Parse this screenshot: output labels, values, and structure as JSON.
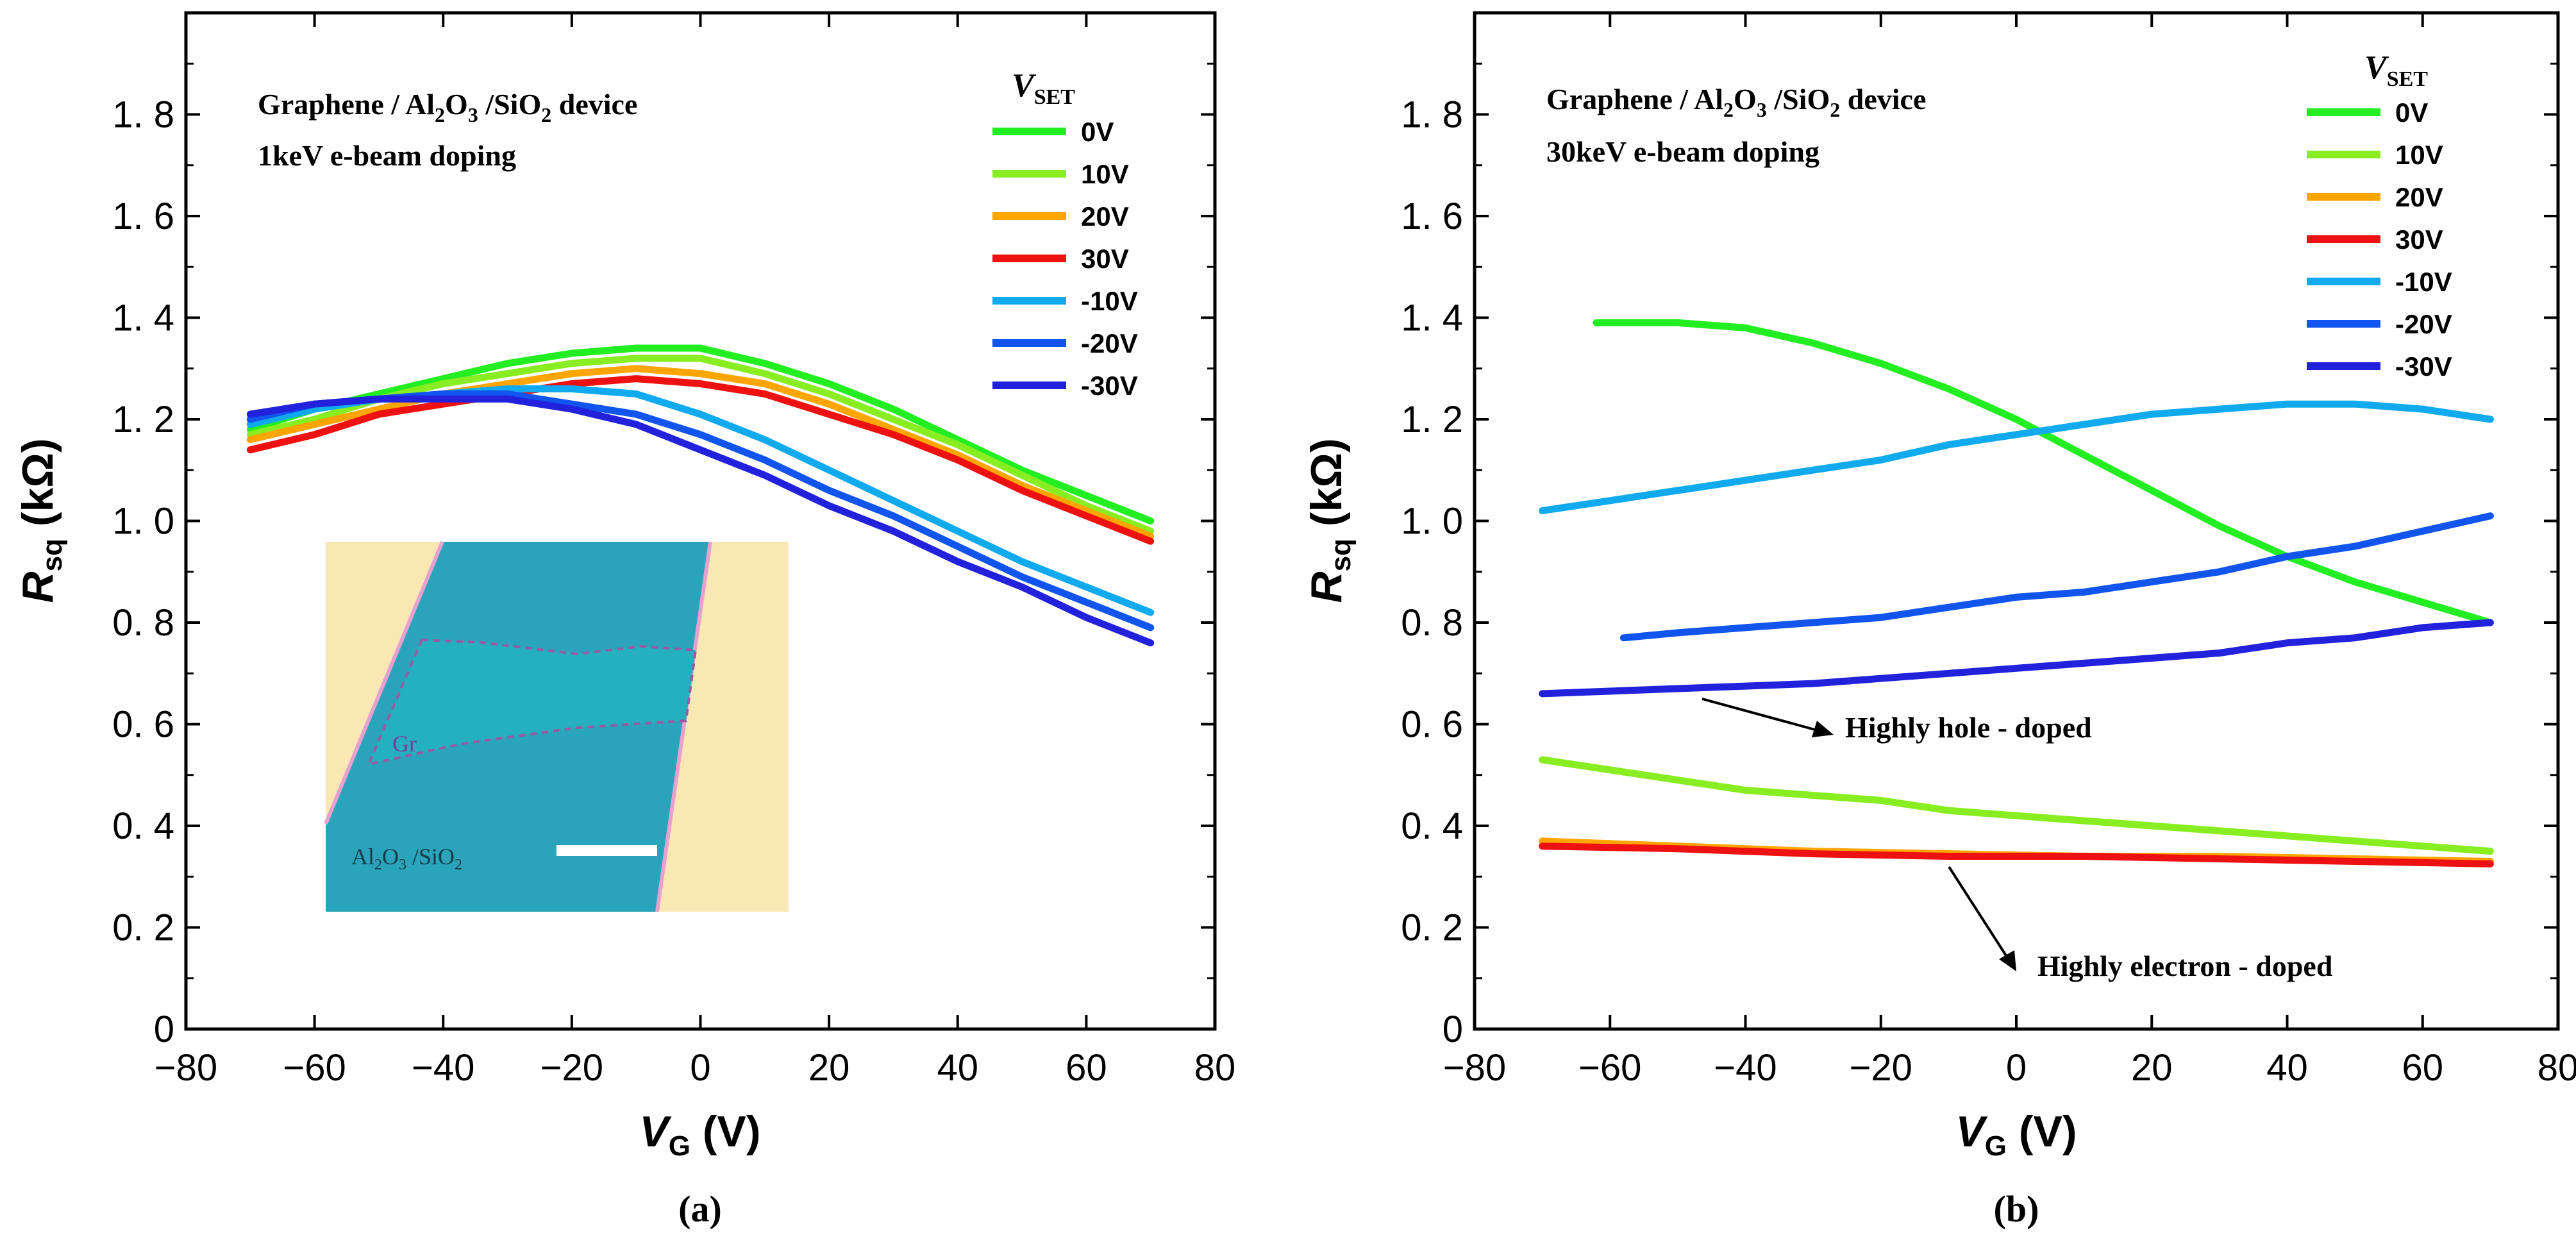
{
  "colors": {
    "0V": "#22ee22",
    "10V": "#88ee22",
    "20V": "#ffa500",
    "30V": "#ee1111",
    "-10V": "#11aaee",
    "-20V": "#1155ee",
    "-30V": "#2222dd"
  },
  "chart_data": [
    {
      "type": "line",
      "panel_label": "(a)",
      "annotation": {
        "line1_pre": "Graphene / Al",
        "sub1": "2",
        "mid1": "O",
        "sub2": "3",
        "mid2": " /SiO",
        "sub3": "2",
        "line1_post": " device",
        "line2": "1keV e-beam doping"
      },
      "legend_title": {
        "main": "V",
        "sub": "SET"
      },
      "xlabel": {
        "main": "V",
        "sub": "G",
        "unit": " (V)"
      },
      "ylabel": {
        "main": "R",
        "sub": "sq",
        "unit": " (kΩ)"
      },
      "xlim": [
        -80,
        80
      ],
      "ylim": [
        0,
        2.0
      ],
      "xticks": [
        "−80",
        "−60",
        "−40",
        "−20",
        "0",
        "20",
        "40",
        "60",
        "80"
      ],
      "yticks": [
        "0",
        "0. 2",
        "0. 4",
        "0. 6",
        "0. 8",
        "1. 0",
        "1. 2",
        "1. 4",
        "1. 6",
        "1. 8"
      ],
      "inset": {
        "gr_label": "Gr",
        "sub_label_pre": "Al",
        "sub_label_sub1": "2",
        "sub_label_mid": "O",
        "sub_label_sub2": "3",
        "sub_label_post": " /SiO",
        "sub_label_sub3": "2"
      },
      "series": [
        {
          "name": "0V",
          "x": [
            -70,
            -60,
            -50,
            -40,
            -30,
            -20,
            -10,
            0,
            10,
            20,
            30,
            40,
            50,
            60,
            70
          ],
          "y": [
            1.18,
            1.22,
            1.25,
            1.28,
            1.31,
            1.33,
            1.34,
            1.34,
            1.31,
            1.27,
            1.22,
            1.16,
            1.1,
            1.05,
            1.0
          ]
        },
        {
          "name": "10V",
          "x": [
            -70,
            -60,
            -50,
            -40,
            -30,
            -20,
            -10,
            0,
            10,
            20,
            30,
            40,
            50,
            60,
            70
          ],
          "y": [
            1.17,
            1.2,
            1.24,
            1.27,
            1.29,
            1.31,
            1.32,
            1.32,
            1.29,
            1.25,
            1.2,
            1.15,
            1.09,
            1.03,
            0.98
          ]
        },
        {
          "name": "20V",
          "x": [
            -70,
            -60,
            -50,
            -40,
            -30,
            -20,
            -10,
            0,
            10,
            20,
            30,
            40,
            50,
            60,
            70
          ],
          "y": [
            1.16,
            1.19,
            1.22,
            1.25,
            1.27,
            1.29,
            1.3,
            1.29,
            1.27,
            1.23,
            1.18,
            1.13,
            1.07,
            1.02,
            0.97
          ]
        },
        {
          "name": "30V",
          "x": [
            -70,
            -60,
            -50,
            -40,
            -30,
            -20,
            -10,
            0,
            10,
            20,
            30,
            40,
            50,
            60,
            70
          ],
          "y": [
            1.14,
            1.17,
            1.21,
            1.23,
            1.25,
            1.27,
            1.28,
            1.27,
            1.25,
            1.21,
            1.17,
            1.12,
            1.06,
            1.01,
            0.96
          ]
        },
        {
          "name": "-10V",
          "x": [
            -70,
            -60,
            -50,
            -40,
            -30,
            -20,
            -10,
            0,
            10,
            20,
            30,
            40,
            50,
            60,
            70
          ],
          "y": [
            1.19,
            1.22,
            1.24,
            1.25,
            1.26,
            1.26,
            1.25,
            1.21,
            1.16,
            1.1,
            1.04,
            0.98,
            0.92,
            0.87,
            0.82
          ]
        },
        {
          "name": "-20V",
          "x": [
            -70,
            -60,
            -50,
            -40,
            -30,
            -20,
            -10,
            0,
            10,
            20,
            30,
            40,
            50,
            60,
            70
          ],
          "y": [
            1.2,
            1.23,
            1.24,
            1.25,
            1.25,
            1.23,
            1.21,
            1.17,
            1.12,
            1.06,
            1.01,
            0.95,
            0.89,
            0.84,
            0.79
          ]
        },
        {
          "name": "-30V",
          "x": [
            -70,
            -60,
            -50,
            -40,
            -30,
            -20,
            -10,
            0,
            10,
            20,
            30,
            40,
            50,
            60,
            70
          ],
          "y": [
            1.21,
            1.23,
            1.24,
            1.24,
            1.24,
            1.22,
            1.19,
            1.14,
            1.09,
            1.03,
            0.98,
            0.92,
            0.87,
            0.81,
            0.76
          ]
        }
      ]
    },
    {
      "type": "line",
      "panel_label": "(b)",
      "annotation": {
        "line1_pre": "Graphene / Al",
        "sub1": "2",
        "mid1": "O",
        "sub2": "3",
        "mid2": " /SiO",
        "sub3": "2",
        "line1_post": " device",
        "line2": "30keV e-beam doping"
      },
      "legend_title": {
        "main": "V",
        "sub": "SET"
      },
      "xlabel": {
        "main": "V",
        "sub": "G",
        "unit": " (V)"
      },
      "ylabel": {
        "main": "R",
        "sub": "sq",
        "unit": " (kΩ)"
      },
      "xlim": [
        -80,
        80
      ],
      "ylim": [
        0,
        2.0
      ],
      "xticks": [
        "−80",
        "−60",
        "−40",
        "−20",
        "0",
        "20",
        "40",
        "60",
        "80"
      ],
      "yticks": [
        "0",
        "0. 2",
        "0. 4",
        "0. 6",
        "0. 8",
        "1. 0",
        "1. 2",
        "1. 4",
        "1. 6",
        "1. 8"
      ],
      "arrow_labels": {
        "hole": "Highly hole - doped",
        "electron": "Highly electron - doped"
      },
      "series": [
        {
          "name": "0V",
          "x": [
            -62,
            -50,
            -40,
            -30,
            -20,
            -10,
            0,
            10,
            20,
            30,
            40,
            50,
            60,
            70
          ],
          "y": [
            1.39,
            1.39,
            1.38,
            1.35,
            1.31,
            1.26,
            1.2,
            1.13,
            1.06,
            0.99,
            0.93,
            0.88,
            0.84,
            0.8
          ]
        },
        {
          "name": "10V",
          "x": [
            -70,
            -60,
            -50,
            -40,
            -30,
            -20,
            -10,
            0,
            10,
            20,
            30,
            40,
            50,
            60,
            70
          ],
          "y": [
            0.53,
            0.51,
            0.49,
            0.47,
            0.46,
            0.45,
            0.43,
            0.42,
            0.41,
            0.4,
            0.39,
            0.38,
            0.37,
            0.36,
            0.35
          ]
        },
        {
          "name": "20V",
          "x": [
            -70,
            -50,
            -30,
            -10,
            10,
            30,
            50,
            70
          ],
          "y": [
            0.37,
            0.36,
            0.35,
            0.345,
            0.34,
            0.34,
            0.335,
            0.33
          ]
        },
        {
          "name": "30V",
          "x": [
            -70,
            -50,
            -30,
            -10,
            10,
            30,
            50,
            70
          ],
          "y": [
            0.36,
            0.355,
            0.345,
            0.34,
            0.34,
            0.335,
            0.33,
            0.325
          ]
        },
        {
          "name": "-10V",
          "x": [
            -70,
            -60,
            -50,
            -40,
            -30,
            -20,
            -10,
            0,
            10,
            20,
            30,
            40,
            50,
            60,
            70
          ],
          "y": [
            1.02,
            1.04,
            1.06,
            1.08,
            1.1,
            1.12,
            1.15,
            1.17,
            1.19,
            1.21,
            1.22,
            1.23,
            1.23,
            1.22,
            1.2
          ]
        },
        {
          "name": "-20V",
          "x": [
            -58,
            -50,
            -40,
            -30,
            -20,
            -10,
            0,
            10,
            20,
            30,
            40,
            50,
            60,
            70
          ],
          "y": [
            0.77,
            0.78,
            0.79,
            0.8,
            0.81,
            0.83,
            0.85,
            0.86,
            0.88,
            0.9,
            0.93,
            0.95,
            0.98,
            1.01
          ]
        },
        {
          "name": "-30V",
          "x": [
            -70,
            -60,
            -50,
            -40,
            -30,
            -20,
            -10,
            0,
            10,
            20,
            30,
            40,
            50,
            60,
            70
          ],
          "y": [
            0.66,
            0.665,
            0.67,
            0.675,
            0.68,
            0.69,
            0.7,
            0.71,
            0.72,
            0.73,
            0.74,
            0.76,
            0.77,
            0.79,
            0.8
          ]
        }
      ]
    }
  ]
}
